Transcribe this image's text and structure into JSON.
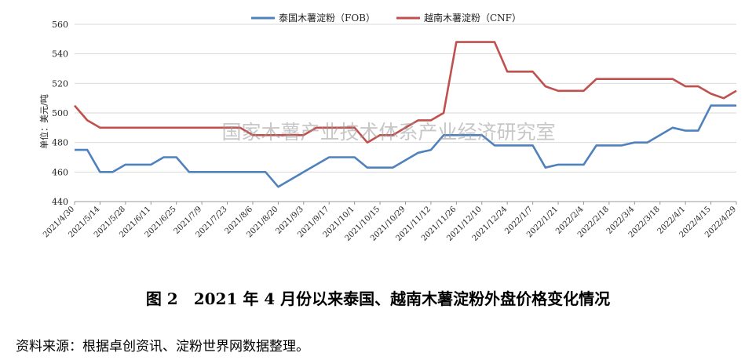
{
  "chart_data": {
    "type": "line",
    "ylabel": "单位：美元/吨",
    "ylim": [
      440,
      560
    ],
    "yticks": [
      440,
      460,
      480,
      500,
      520,
      540,
      560
    ],
    "grid": "horizontal",
    "legend_position": "top-center",
    "x": [
      "2021/4/30",
      "2021/5/7",
      "2021/5/14",
      "2021/5/21",
      "2021/5/28",
      "2021/6/4",
      "2021/6/11",
      "2021/6/18",
      "2021/6/25",
      "2021/7/2",
      "2021/7/9",
      "2021/7/16",
      "2021/7/23",
      "2021/7/30",
      "2021/8/6",
      "2021/8/13",
      "2021/8/20",
      "2021/8/27",
      "2021/9/3",
      "2021/9/10",
      "2021/9/17",
      "2021/9/24",
      "2021/10/1",
      "2021/10/8",
      "2021/10/15",
      "2021/10/22",
      "2021/10/29",
      "2021/11/5",
      "2021/11/12",
      "2021/11/19",
      "2021/11/26",
      "2021/12/3",
      "2021/12/10",
      "2021/12/17",
      "2021/12/24",
      "2021/12/31",
      "2022/1/7",
      "2022/1/14",
      "2022/1/21",
      "2022/1/28",
      "2022/2/4",
      "2022/2/11",
      "2022/2/18",
      "2022/2/25",
      "2022/3/4",
      "2022/3/11",
      "2022/3/18",
      "2022/3/25",
      "2022/4/1",
      "2022/4/8",
      "2022/4/15",
      "2022/4/22",
      "2022/4/29"
    ],
    "xtick_labels": [
      "2021/4/30",
      "2021/5/14",
      "2021/5/28",
      "2021/6/11",
      "2021/6/25",
      "2021/7/9",
      "2021/7/23",
      "2021/8/6",
      "2021/8/20",
      "2021/9/3",
      "2021/9/17",
      "2021/10/1",
      "2021/10/15",
      "2021/10/29",
      "2021/11/12",
      "2021/11/26",
      "2021/12/10",
      "2021/12/24",
      "2022/1/7",
      "2022/1/21",
      "2022/2/4",
      "2022/2/18",
      "2022/3/4",
      "2022/3/18",
      "2022/4/1",
      "2022/4/15",
      "2022/4/29"
    ],
    "series": [
      {
        "name": "泰国木薯淀粉（FOB）",
        "color": "#4f81bd",
        "values": [
          475,
          475,
          460,
          460,
          465,
          465,
          465,
          470,
          470,
          460,
          460,
          460,
          460,
          460,
          460,
          460,
          450,
          455,
          460,
          465,
          470,
          470,
          470,
          463,
          463,
          463,
          468,
          473,
          475,
          485,
          485,
          485,
          485,
          478,
          478,
          478,
          478,
          463,
          465,
          465,
          465,
          478,
          478,
          478,
          480,
          480,
          485,
          490,
          488,
          488,
          505,
          505,
          505
        ]
      },
      {
        "name": "越南木薯淀粉（CNF）",
        "color": "#c0504d",
        "values": [
          505,
          495,
          490,
          490,
          490,
          490,
          490,
          490,
          490,
          490,
          490,
          490,
          490,
          490,
          485,
          485,
          485,
          485,
          485,
          490,
          490,
          490,
          490,
          480,
          485,
          485,
          490,
          495,
          495,
          500,
          548,
          548,
          548,
          548,
          528,
          528,
          528,
          518,
          515,
          515,
          515,
          523,
          523,
          523,
          523,
          523,
          523,
          523,
          518,
          518,
          513,
          510,
          515
        ]
      }
    ]
  },
  "watermark": "国家木薯产业技术体系产业经济研究室",
  "caption": "图 2　2021 年 4 月份以来泰国、越南木薯淀粉外盘价格变化情况",
  "source_note": "资料来源：根据卓创资讯、淀粉世界网数据整理。"
}
